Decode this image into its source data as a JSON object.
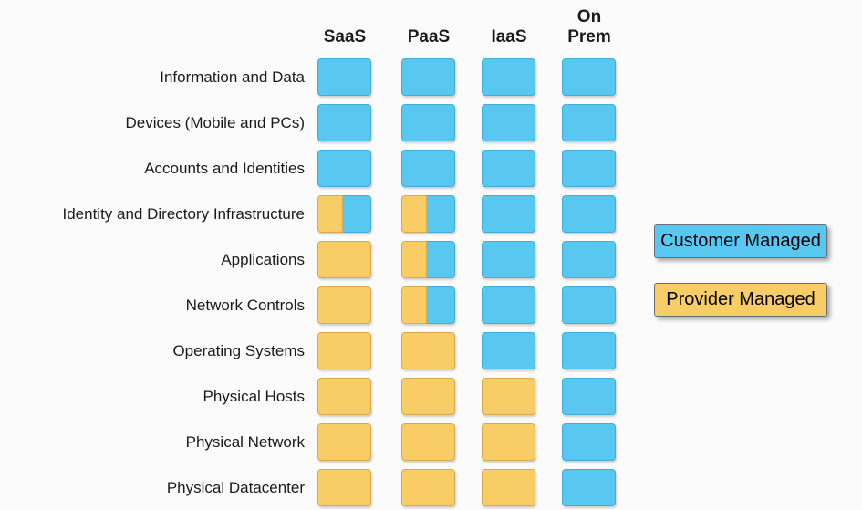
{
  "colors": {
    "background": "#FBFBFB",
    "text": "#1A1A1A",
    "customer_fill": "#58C8F0",
    "customer_border": "#44ACD8",
    "provider_fill": "#F8CD66",
    "provider_border": "#D9A850"
  },
  "columns": [
    {
      "label": "SaaS"
    },
    {
      "label": "PaaS"
    },
    {
      "label": "IaaS"
    },
    {
      "label": "On Prem"
    }
  ],
  "rows": [
    {
      "label": "Information and Data",
      "cells": [
        "customer",
        "customer",
        "customer",
        "customer"
      ]
    },
    {
      "label": "Devices (Mobile and PCs)",
      "cells": [
        "customer",
        "customer",
        "customer",
        "customer"
      ]
    },
    {
      "label": "Accounts and Identities",
      "cells": [
        "customer",
        "customer",
        "customer",
        "customer"
      ]
    },
    {
      "label": "Identity and Directory Infrastructure",
      "cells": [
        "split",
        "split",
        "customer",
        "customer"
      ]
    },
    {
      "label": "Applications",
      "cells": [
        "provider",
        "split",
        "customer",
        "customer"
      ]
    },
    {
      "label": "Network Controls",
      "cells": [
        "provider",
        "split",
        "customer",
        "customer"
      ]
    },
    {
      "label": "Operating Systems",
      "cells": [
        "provider",
        "provider",
        "customer",
        "customer"
      ]
    },
    {
      "label": "Physical Hosts",
      "cells": [
        "provider",
        "provider",
        "provider",
        "customer"
      ]
    },
    {
      "label": "Physical Network",
      "cells": [
        "provider",
        "provider",
        "provider",
        "customer"
      ]
    },
    {
      "label": "Physical Datacenter",
      "cells": [
        "provider",
        "provider",
        "provider",
        "customer"
      ]
    }
  ],
  "split_provider_percent": 47,
  "legend": [
    {
      "label": "Customer Managed",
      "type": "customer"
    },
    {
      "label": "Provider Managed",
      "type": "provider"
    }
  ]
}
